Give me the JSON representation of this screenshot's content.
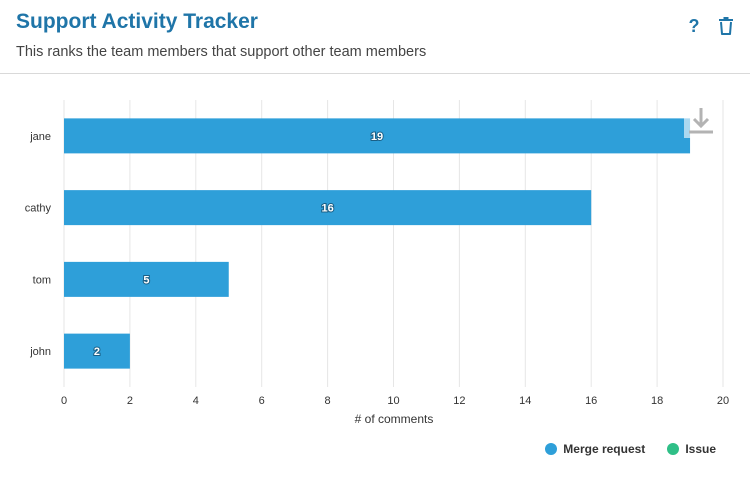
{
  "header": {
    "title": "Support Activity Tracker",
    "subtitle": "This ranks the team members that support other team members",
    "help_label": "?"
  },
  "icons": {
    "help": "question-mark-icon",
    "delete": "trash-icon",
    "download": "download-icon"
  },
  "colors": {
    "title": "#1f75a8",
    "merge_request": "#2e9fd9",
    "issue": "#2fbf87",
    "grid": "#e6e6e6"
  },
  "chart_data": {
    "type": "bar",
    "orientation": "horizontal",
    "categories": [
      "jane",
      "cathy",
      "tom",
      "john"
    ],
    "series": [
      {
        "name": "Merge request",
        "values": [
          19,
          16,
          5,
          2
        ]
      },
      {
        "name": "Issue",
        "values": [
          0,
          0,
          0,
          0
        ]
      }
    ],
    "data_labels": [
      "19",
      "16",
      "5",
      "2"
    ],
    "xlabel": "# of comments",
    "ylabel": "",
    "xlim": [
      0,
      20
    ],
    "xticks": [
      0,
      2,
      4,
      6,
      8,
      10,
      12,
      14,
      16,
      18,
      20
    ],
    "grid": true,
    "legend_position": "bottom-right"
  }
}
